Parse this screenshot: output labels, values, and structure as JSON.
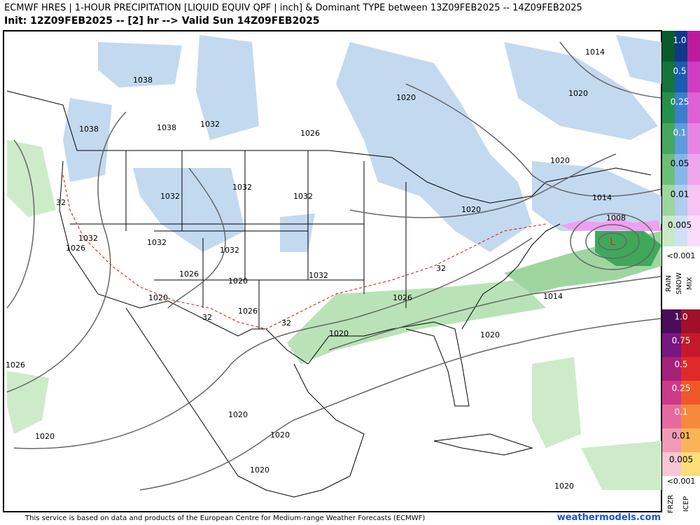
{
  "header": {
    "title": "ECMWF HRES | 1-HOUR PRECIPITATION [LIQUID EQUIV QPF | inch] & Dominant TYPE between 13Z09FEB2025 -- 14Z09FEB2025",
    "subtitle": "Init: 12Z09FEB2025 -- [2] hr --> Valid Sun 14Z09FEB2025"
  },
  "map": {
    "low_label": "L",
    "pressure_labels": [
      "1038",
      "1038",
      "1038",
      "1032",
      "1026",
      "1020",
      "1014",
      "1020",
      "1020",
      "1032",
      "1032",
      "1032",
      "32",
      "1032",
      "1026",
      "1032",
      "1032",
      "1026",
      "1020",
      "1032",
      "1020",
      "32",
      "1026",
      "32",
      "1026",
      "1020",
      "1014",
      "1008",
      "32",
      "1014",
      "1020",
      "1020",
      "1026",
      "1020",
      "1020",
      "1020",
      "1020",
      "1020"
    ]
  },
  "legend": {
    "rain_snow_mix": {
      "levels": [
        "1.0",
        "0.5",
        "0.25",
        "0.1",
        "0.05",
        "0.01",
        "0.005"
      ],
      "min": "<0.001",
      "types": [
        "RAIN",
        "SNOW",
        "MIX"
      ]
    },
    "ice": {
      "levels": [
        "1.0",
        "0.75",
        "0.5",
        "0.25",
        "0.1",
        "0.01",
        "0.005"
      ],
      "min": "<0.001",
      "types": [
        "FRZR",
        "ICEP"
      ]
    }
  },
  "footer": {
    "text": "This service is based on data and products of the European Centre for Medium-range Weather Forecasts (ECMWF)",
    "brand": "weathermodels.com"
  }
}
